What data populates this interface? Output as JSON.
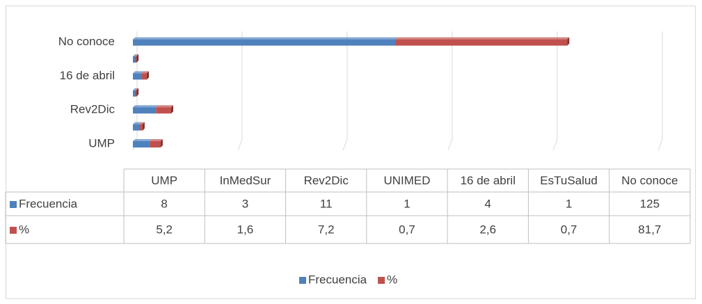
{
  "chart_data": {
    "type": "bar",
    "orientation": "horizontal",
    "stacked": true,
    "categories": [
      "UMP",
      "InMedSur",
      "Rev2Dic",
      "UNIMED",
      "16 de abril",
      "EsTuSalud",
      "No conoce"
    ],
    "series": [
      {
        "name": "Frecuencia",
        "color": "#4f81bd",
        "values": [
          8,
          3,
          11,
          1,
          4,
          1,
          125
        ]
      },
      {
        "name": "%",
        "color": "#c0504d",
        "values": [
          5.2,
          1.6,
          7.2,
          0.7,
          2.6,
          0.7,
          81.7
        ],
        "value_labels": [
          "5,2",
          "1,6",
          "7,2",
          "0,7",
          "2,6",
          "0,7",
          "81,7"
        ]
      }
    ],
    "xlim": [
      0,
      250
    ],
    "xticks": [
      0,
      50,
      100,
      150,
      200,
      250
    ],
    "grid": true,
    "legend": "bottom"
  }
}
